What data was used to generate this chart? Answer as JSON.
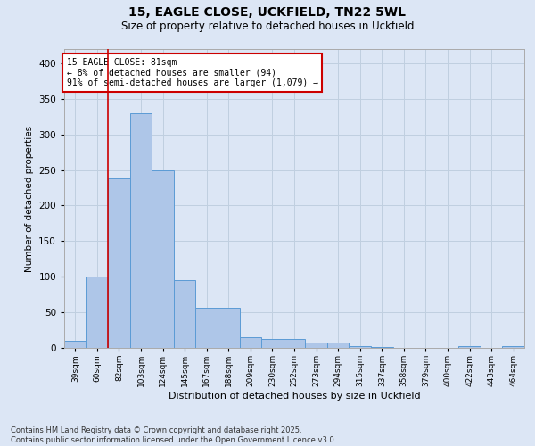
{
  "title": "15, EAGLE CLOSE, UCKFIELD, TN22 5WL",
  "subtitle": "Size of property relative to detached houses in Uckfield",
  "xlabel": "Distribution of detached houses by size in Uckfield",
  "ylabel": "Number of detached properties",
  "footer_line1": "Contains HM Land Registry data © Crown copyright and database right 2025.",
  "footer_line2": "Contains public sector information licensed under the Open Government Licence v3.0.",
  "bar_labels": [
    "39sqm",
    "60sqm",
    "82sqm",
    "103sqm",
    "124sqm",
    "145sqm",
    "167sqm",
    "188sqm",
    "209sqm",
    "230sqm",
    "252sqm",
    "273sqm",
    "294sqm",
    "315sqm",
    "337sqm",
    "358sqm",
    "379sqm",
    "400sqm",
    "422sqm",
    "443sqm",
    "464sqm"
  ],
  "bar_values": [
    10,
    100,
    238,
    330,
    250,
    95,
    57,
    57,
    15,
    13,
    13,
    8,
    8,
    2,
    1,
    0,
    0,
    0,
    2,
    0,
    2
  ],
  "bar_color": "#aec6e8",
  "bar_edge_color": "#5b9bd5",
  "grid_color": "#c0cfe0",
  "annotation_text_line1": "15 EAGLE CLOSE: 81sqm",
  "annotation_text_line2": "← 8% of detached houses are smaller (94)",
  "annotation_text_line3": "91% of semi-detached houses are larger (1,079) →",
  "annotation_box_color": "#ffffff",
  "annotation_box_edge_color": "#cc0000",
  "red_line_color": "#cc0000",
  "background_color": "#dce6f5",
  "ylim": [
    0,
    420
  ],
  "yticks": [
    0,
    50,
    100,
    150,
    200,
    250,
    300,
    350,
    400
  ]
}
